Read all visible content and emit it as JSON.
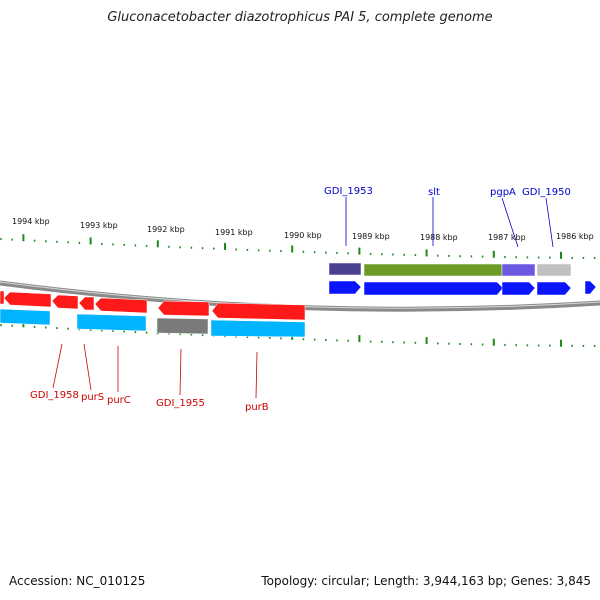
{
  "title": "Gluconacetobacter diazotrophicus PAI 5, complete genome",
  "footer": {
    "accession": "Accession: NC_010125",
    "summary": "Topology: circular; Length: 3,944,163 bp; Genes: 3,845"
  },
  "colors": {
    "backbone": "#8a8a8a",
    "tick": "#1a8a1a",
    "red_gene": "#ff1a1a",
    "cyan_gene": "#00b4ff",
    "blue_gene": "#0a14ff",
    "gray_gene": "#7a7a7a",
    "olive_gene": "#6e9a28",
    "slate_gene": "#4a4090",
    "violet_gene": "#6a58e0",
    "light_gray_gene": "#c0c0c0",
    "label_red": "#cc0000",
    "label_blue": "#0000cc"
  },
  "scale_labels": [
    "1994 kbp",
    "1993 kbp",
    "1992 kbp",
    "1991 kbp",
    "1990 kbp",
    "1989 kbp",
    "1988 kbp",
    "1987 kbp",
    "1986 kbp"
  ],
  "gene_labels_top": [
    "GDI_1953",
    "slt",
    "pgpA",
    "GDI_1950"
  ],
  "gene_labels_bottom": [
    "GDI_1958",
    "purS",
    "purC",
    "GDI_1955",
    "purB"
  ]
}
